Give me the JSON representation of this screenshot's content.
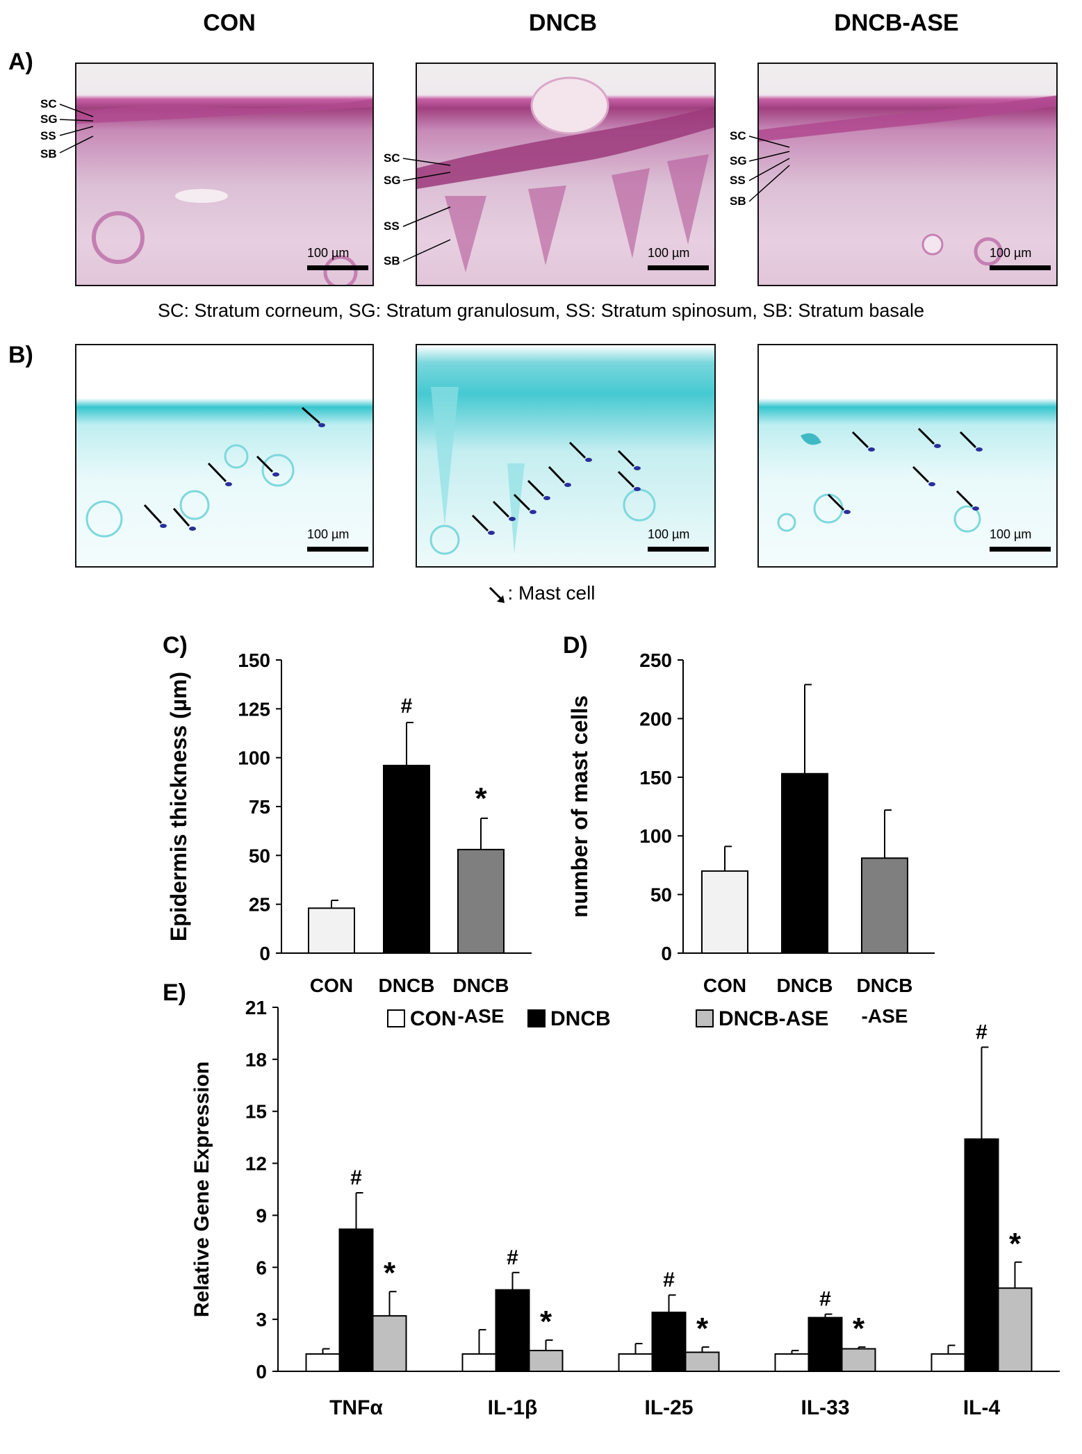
{
  "groups": [
    "CON",
    "DNCB",
    "DNCB-ASE"
  ],
  "panel_a": {
    "letter": "A)",
    "layer_labels": [
      "SC",
      "SG",
      "SS",
      "SB"
    ],
    "scale_label": "100 µm",
    "caption": "SC: Stratum corneum, SG: Stratum granulosum, SS: Stratum spinosum, SB: Stratum basale"
  },
  "panel_b": {
    "letter": "B)",
    "scale_label": "100 µm",
    "caption": ": Mast cell"
  },
  "chart_data": [
    {
      "panel": "C)",
      "type": "bar",
      "categories": [
        "CON",
        "DNCB",
        "DNCB-ASE"
      ],
      "category_lines": [
        [
          "CON"
        ],
        [
          "DNCB"
        ],
        [
          "DNCB",
          "-ASE"
        ]
      ],
      "values": [
        23,
        96,
        53
      ],
      "errors": [
        4,
        22,
        16
      ],
      "annotations": [
        "",
        "#",
        "*"
      ],
      "colors": [
        "#f2f2f2",
        "#000000",
        "#7f7f7f"
      ],
      "ylabel": "Epidermis thickness (µm)",
      "ylim": [
        0,
        150
      ],
      "yticks": [
        0,
        25,
        50,
        75,
        100,
        125,
        150
      ],
      "xlabel": ""
    },
    {
      "panel": "D)",
      "type": "bar",
      "categories": [
        "CON",
        "DNCB",
        "DNCB-ASE"
      ],
      "category_lines": [
        [
          "CON"
        ],
        [
          "DNCB"
        ],
        [
          "DNCB",
          "-ASE"
        ]
      ],
      "values": [
        70,
        153,
        81
      ],
      "errors": [
        21,
        76,
        41
      ],
      "annotations": [
        "",
        "",
        ""
      ],
      "colors": [
        "#f2f2f2",
        "#000000",
        "#7f7f7f"
      ],
      "ylabel": "number of mast cells",
      "ylim": [
        0,
        250
      ],
      "yticks": [
        0,
        50,
        100,
        150,
        200,
        250
      ],
      "xlabel": ""
    },
    {
      "panel": "E)",
      "type": "bar",
      "categories": [
        "TNFα",
        "IL-1β",
        "IL-25",
        "IL-33",
        "IL-4"
      ],
      "ylabel": "Relative Gene Expression",
      "ylim": [
        0,
        21
      ],
      "yticks": [
        0,
        3,
        6,
        9,
        12,
        15,
        18,
        21
      ],
      "legend_position": "top",
      "series": [
        {
          "name": "CON",
          "color": "#ffffff",
          "values": [
            1.0,
            1.0,
            1.0,
            1.0,
            1.0
          ],
          "errors": [
            0.3,
            1.4,
            0.6,
            0.2,
            0.5
          ],
          "annotations": [
            "",
            "",
            "",
            "",
            ""
          ]
        },
        {
          "name": "DNCB",
          "color": "#000000",
          "values": [
            8.2,
            4.7,
            3.4,
            3.1,
            13.4
          ],
          "errors": [
            2.1,
            1.0,
            1.0,
            0.2,
            5.3
          ],
          "annotations": [
            "#",
            "#",
            "#",
            "#",
            "#"
          ]
        },
        {
          "name": "DNCB-ASE",
          "color": "#bfbfbf",
          "values": [
            3.2,
            1.2,
            1.1,
            1.3,
            4.8
          ],
          "errors": [
            1.4,
            0.6,
            0.3,
            0.1,
            1.5
          ],
          "annotations": [
            "*",
            "*",
            "*",
            "*",
            "*"
          ]
        }
      ]
    }
  ]
}
